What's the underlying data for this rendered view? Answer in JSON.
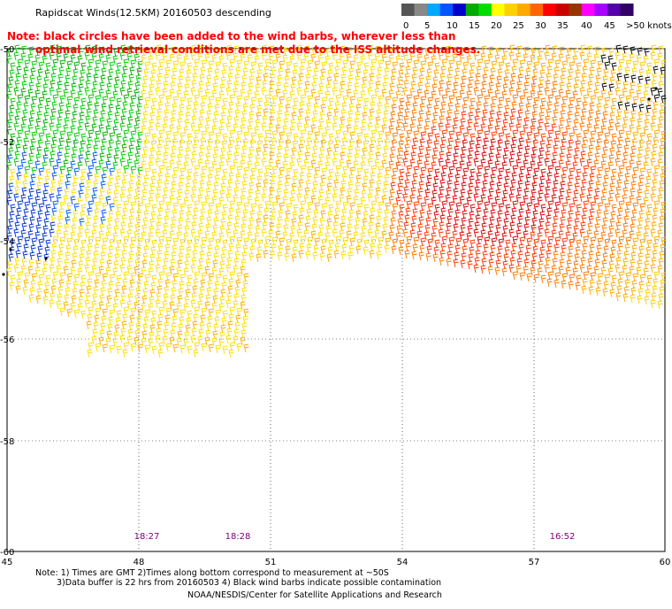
{
  "title": "Rapidscat Winds(12.5KM) 20160503 descending",
  "note_red_line1": "Note: black circles have been added to the wind barbs, wherever less than",
  "note_red_line2": "optimal wind retrieval conditions are met due to the ISS altitude changes.",
  "legend": {
    "labels": [
      "0",
      "5",
      "10",
      "15",
      "20",
      "25",
      "30",
      "35",
      "40",
      "45",
      ">50 knots"
    ],
    "colors": [
      "#555555",
      "#888888",
      "#00aaff",
      "#0055ff",
      "#0000cc",
      "#00aa00",
      "#00dd00",
      "#ffff00",
      "#ffd000",
      "#ffaa00",
      "#ff6600",
      "#ff0000",
      "#cc0000",
      "#993300",
      "#ff00ff",
      "#aa00ff",
      "#5500aa",
      "#330066"
    ]
  },
  "axes": {
    "lat_labels": [
      "-50",
      "-52",
      "-54",
      "-56",
      "-58",
      "-60"
    ],
    "lon_labels": [
      "45",
      "48",
      "51",
      "54",
      "57",
      "60"
    ]
  },
  "pass_times": [
    "18:27",
    "18:28",
    "16:52"
  ],
  "footer": {
    "line1": "Note: 1) Times are GMT 2)Times along bottom correspond to measurement at ~50S",
    "line2": "3)Data buffer is 22 hrs from 20160503 4) Black wind barbs indicate possible contamination",
    "line3": "NOAA/NESDIS/Center for Satellite Applications and Research"
  }
}
